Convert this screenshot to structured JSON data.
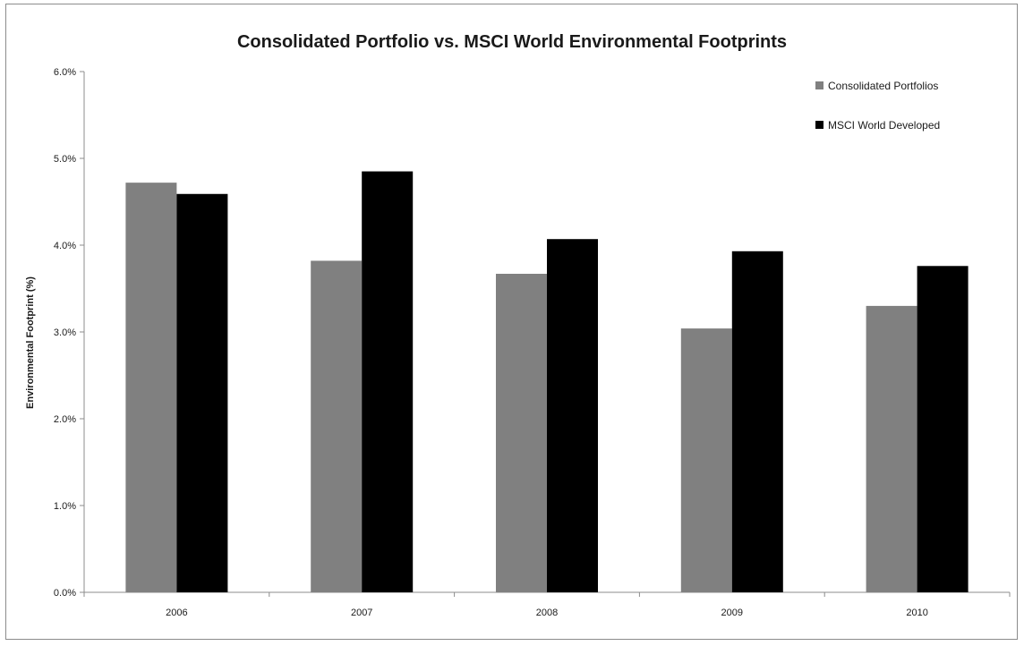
{
  "chart_data": {
    "type": "bar",
    "title": "Consolidated Portfolio vs. MSCI World Environmental Footprints",
    "xlabel": "",
    "ylabel": "Environmental Footprint (%)",
    "categories": [
      "2006",
      "2007",
      "2008",
      "2009",
      "2010"
    ],
    "series": [
      {
        "name": "Consolidated Portfolios",
        "color": "#808080",
        "values": [
          4.72,
          3.82,
          3.67,
          3.04,
          3.3
        ]
      },
      {
        "name": "MSCI World Developed",
        "color": "#000000",
        "values": [
          4.59,
          4.85,
          4.07,
          3.93,
          3.76
        ]
      }
    ],
    "ylim": [
      0,
      6
    ],
    "yticks": [
      "0.0%",
      "1.0%",
      "2.0%",
      "3.0%",
      "4.0%",
      "5.0%",
      "6.0%"
    ],
    "grid": false,
    "legend_position": "top-right"
  }
}
